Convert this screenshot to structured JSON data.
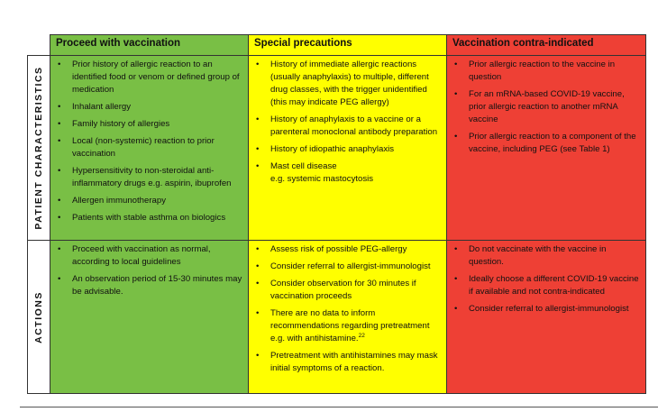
{
  "table": {
    "columns": [
      "Proceed with vaccination",
      "Special precautions",
      "Vaccination contra-indicated"
    ],
    "rows": [
      {
        "label": "PATIENT CHARACTERISTICS",
        "cells": [
          [
            "Prior history of allergic reaction to an identified food or venom or defined group of medication",
            "Inhalant allergy",
            "Family history of allergies",
            "Local (non-systemic) reaction to prior vaccination",
            "Hypersensitivity to non-steroidal anti-inflammatory drugs e.g. aspirin, ibuprofen",
            "Allergen immunotherapy",
            "Patients with stable asthma on biologics"
          ],
          [
            "History of immediate allergic reactions (usually anaphylaxis) to multiple, different drug classes, with the trigger unidentified (this may indicate PEG allergy)",
            "History of anaphylaxis to a vaccine or a parenteral monoclonal antibody preparation",
            "History of idiopathic anaphylaxis",
            {
              "text": "Mast cell disease",
              "note": "e.g. systemic mastocytosis"
            }
          ],
          [
            "Prior allergic reaction to the vaccine in question",
            "For an mRNA-based COVID-19 vaccine, prior allergic reaction to another mRNA vaccine",
            "Prior allergic reaction to a component of the vaccine, including PEG (see Table 1)"
          ]
        ]
      },
      {
        "label": "ACTIONS",
        "cells": [
          [
            "Proceed with vaccination as normal, according to local guidelines",
            "An observation period of 15-30 minutes may be advisable."
          ],
          [
            "Assess risk of possible PEG-allergy",
            "Consider referral to allergist-immunologist",
            "Consider observation for 30 minutes if vaccination proceeds",
            {
              "text": "There are no data to inform recommendations regarding pretreatment e.g. with antihistamine.",
              "sup": "22"
            },
            "Pretreatment with antihistamines may mask initial symptoms of a reaction."
          ],
          [
            "Do not vaccinate with the vaccine in question.",
            "Ideally choose a different COVID-19 vaccine if available and not contra-indicated",
            "Consider referral to allergist-immunologist"
          ]
        ]
      }
    ]
  }
}
